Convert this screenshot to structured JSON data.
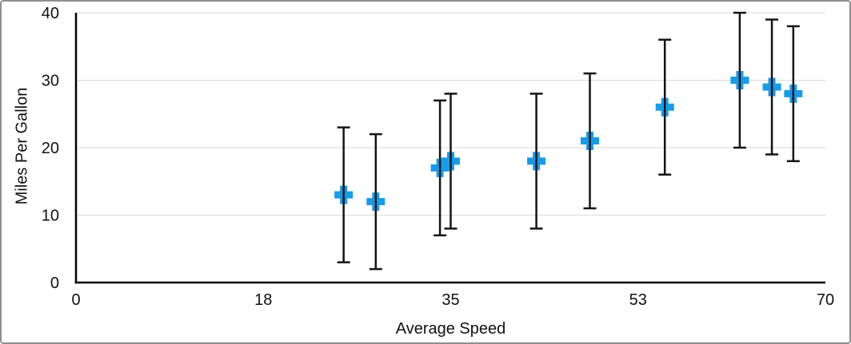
{
  "chart_data": {
    "type": "scatter",
    "title": "",
    "xlabel": "Average Speed",
    "ylabel": "Miles Per Gallon",
    "xlim": [
      0,
      70
    ],
    "ylim": [
      0,
      40
    ],
    "x_ticks": [
      {
        "value": 0,
        "label": "0"
      },
      {
        "value": 17.5,
        "label": "18"
      },
      {
        "value": 35,
        "label": "35"
      },
      {
        "value": 52.5,
        "label": "53"
      },
      {
        "value": 70,
        "label": "70"
      }
    ],
    "y_ticks": [
      {
        "value": 0,
        "label": "0"
      },
      {
        "value": 10,
        "label": "10"
      },
      {
        "value": 20,
        "label": "20"
      },
      {
        "value": 30,
        "label": "30"
      },
      {
        "value": 40,
        "label": "40"
      }
    ],
    "grid": "horizontal",
    "legend": "none",
    "marker": {
      "shape": "plus",
      "color": "#189BE8",
      "size": 23
    },
    "error_bars": {
      "type": "fixed",
      "value": 10,
      "color": "#141414"
    },
    "axis_color": "#000000",
    "gridline_color": "#d9d9d9",
    "points": [
      {
        "x": 25,
        "y": 13,
        "error_plus": 10,
        "error_minus": 10
      },
      {
        "x": 28,
        "y": 12,
        "error_plus": 10,
        "error_minus": 10
      },
      {
        "x": 34,
        "y": 17,
        "error_plus": 10,
        "error_minus": 10
      },
      {
        "x": 35,
        "y": 18,
        "error_plus": 10,
        "error_minus": 10
      },
      {
        "x": 43,
        "y": 18,
        "error_plus": 10,
        "error_minus": 10
      },
      {
        "x": 48,
        "y": 21,
        "error_plus": 10,
        "error_minus": 10
      },
      {
        "x": 55,
        "y": 26,
        "error_plus": 10,
        "error_minus": 10
      },
      {
        "x": 62,
        "y": 30,
        "error_plus": 10,
        "error_minus": 10
      },
      {
        "x": 65,
        "y": 29,
        "error_plus": 10,
        "error_minus": 10
      },
      {
        "x": 67,
        "y": 28,
        "error_plus": 10,
        "error_minus": 10
      }
    ]
  }
}
